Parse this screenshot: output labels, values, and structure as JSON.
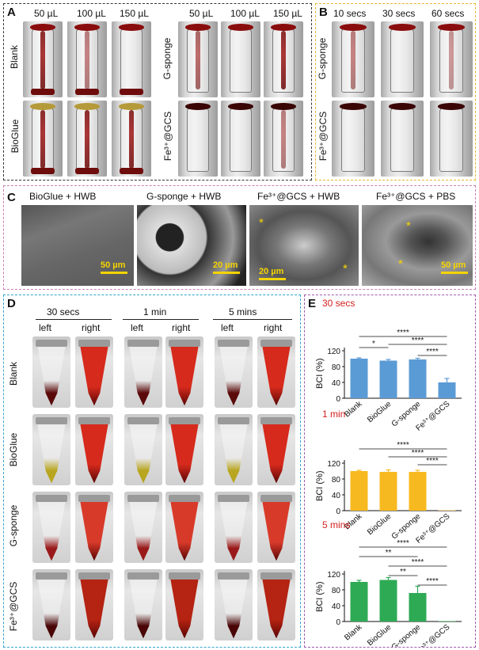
{
  "panelA": {
    "label": "A",
    "top_labels_left": [
      "50 µL",
      "100 µL",
      "150 µL"
    ],
    "top_labels_right": [
      "50 µL",
      "100 µL",
      "150 µL"
    ],
    "row_blank": "Blank",
    "row_bioglue": "BioGlue",
    "row_gsponge": "G-sponge",
    "row_fe": "Fe³⁺@GCS"
  },
  "panelB": {
    "label": "B",
    "top_labels": [
      "10 secs",
      "30 secs",
      "60 secs"
    ],
    "row_gsponge": "G-sponge",
    "row_fe": "Fe³⁺@GCS"
  },
  "panelC": {
    "label": "C",
    "titles": [
      "BioGlue + HWB",
      "G-sponge + HWB",
      "Fe³⁺@GCS + HWB",
      "Fe³⁺@GCS + PBS"
    ],
    "scales": [
      "50 µm",
      "20 µm",
      "20 µm",
      "50 µm"
    ],
    "stars": [
      "*",
      "*",
      "*",
      "*"
    ]
  },
  "panelD": {
    "label": "D",
    "times": [
      "30 secs",
      "1 min",
      "5 mins"
    ],
    "sides": [
      "left",
      "right",
      "left",
      "right",
      "left",
      "right"
    ],
    "rows": [
      "Blank",
      "BioGlue",
      "G-sponge",
      "Fe³⁺@GCS"
    ]
  },
  "panelE": {
    "label": "E",
    "ylabel": "BCI (%)",
    "yticks": [
      "0",
      "20",
      "40",
      "60",
      "80",
      "100",
      "120"
    ],
    "sig": {
      "c1": [
        "****",
        "*",
        "****",
        "****"
      ],
      "c2": [
        "****",
        "****",
        "****"
      ],
      "c3": [
        "****",
        "**",
        "****",
        "**",
        "****"
      ]
    }
  },
  "chart_data": [
    {
      "type": "bar",
      "title": "30 secs",
      "categories": [
        "Blank",
        "BioGlue",
        "G-sponge",
        "Fe³⁺@GCS"
      ],
      "values": [
        100,
        95,
        98,
        40
      ],
      "errors": [
        2,
        3,
        3,
        10
      ],
      "ylabel": "BCI (%)",
      "ylim": [
        0,
        120
      ],
      "color": "#5b9bd5"
    },
    {
      "type": "bar",
      "title": "1 min",
      "categories": [
        "Blank",
        "BioGlue",
        "G-sponge",
        "Fe³⁺@GCS"
      ],
      "values": [
        100,
        98,
        98,
        1
      ],
      "errors": [
        2,
        5,
        4,
        0
      ],
      "ylabel": "BCI (%)",
      "ylim": [
        0,
        120
      ],
      "color": "#f7b920"
    },
    {
      "type": "bar",
      "title": "5 mins",
      "categories": [
        "Blank",
        "BioGlue",
        "G-sponge",
        "Fe³⁺@GCS"
      ],
      "values": [
        100,
        105,
        72,
        1
      ],
      "errors": [
        4,
        6,
        17,
        0
      ],
      "ylabel": "BCI (%)",
      "ylim": [
        0,
        120
      ],
      "color": "#2eaa55"
    }
  ]
}
